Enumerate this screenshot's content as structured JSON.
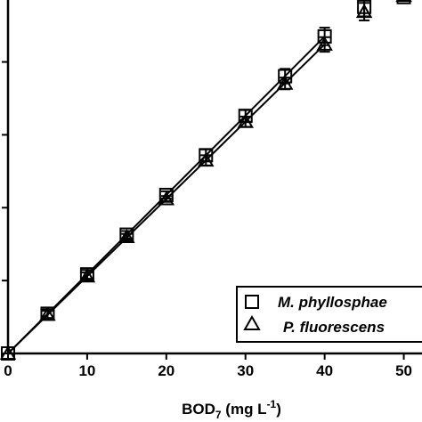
{
  "chart_data": {
    "type": "scatter",
    "title": "",
    "xlabel": {
      "main": "BOD",
      "sub": "7",
      "unit_open": " (mg L",
      "sup": "-1",
      "unit_close": ")"
    },
    "ylabel": "",
    "xlim": [
      0,
      52.3
    ],
    "ylim": [
      0,
      0.97
    ],
    "xticks": [
      0,
      10,
      20,
      30,
      40,
      50
    ],
    "ytick_values": [
      0,
      0.2,
      0.4,
      0.6,
      0.8
    ],
    "grid": false,
    "legend_position": "bottom-right",
    "series": [
      {
        "name": "M. phyllosphae",
        "marker": "square",
        "x": [
          0,
          5,
          10,
          15,
          20,
          25,
          30,
          35,
          40,
          45,
          50
        ],
        "y": [
          0,
          0.109,
          0.217,
          0.326,
          0.435,
          0.544,
          0.652,
          0.761,
          0.87,
          0.951,
          0.978
        ],
        "err": [
          0,
          0.012,
          0.012,
          0.01,
          0.01,
          0.016,
          0.016,
          0.02,
          0.024,
          0.026,
          0.01
        ],
        "fit": {
          "x": [
            0,
            40
          ],
          "y": [
            0,
            0.87
          ]
        }
      },
      {
        "name": "P. fluorescens",
        "marker": "triangle",
        "x": [
          0,
          5,
          10,
          15,
          20,
          25,
          30,
          35,
          40,
          45,
          50
        ],
        "y": [
          0,
          0.107,
          0.212,
          0.32,
          0.424,
          0.53,
          0.636,
          0.741,
          0.848,
          0.938,
          0.982
        ],
        "err": [
          0,
          0.01,
          0.01,
          0.008,
          0.008,
          0.014,
          0.014,
          0.016,
          0.02,
          0.024,
          0.008
        ],
        "fit": {
          "x": [
            0,
            40
          ],
          "y": [
            0,
            0.848
          ]
        }
      }
    ]
  }
}
